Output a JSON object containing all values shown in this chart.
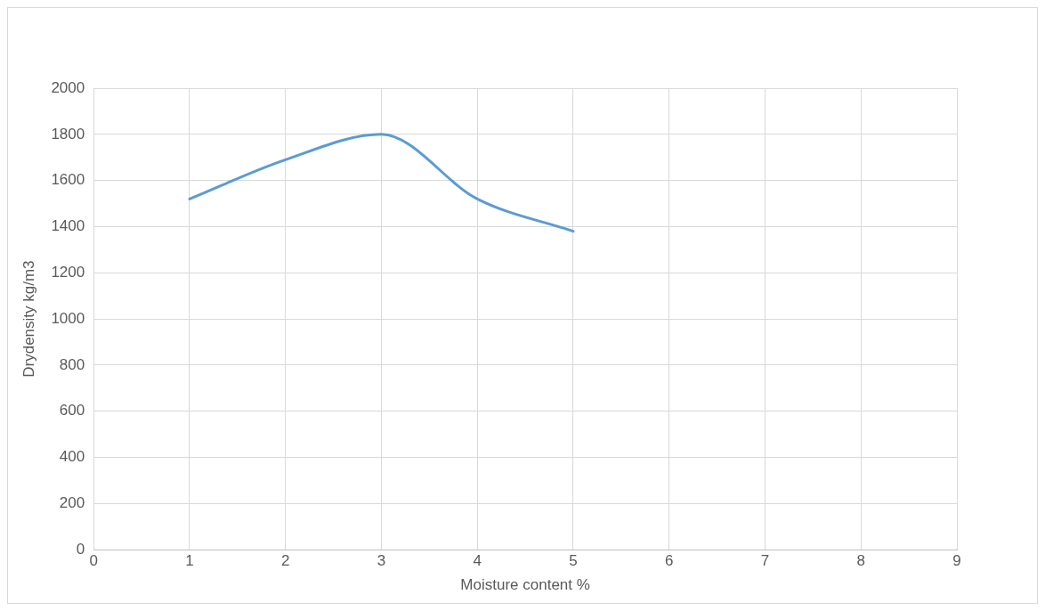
{
  "chart_data": {
    "type": "line",
    "xlabel": "Moisture content %",
    "ylabel": "Drydensity kg/m3",
    "x": [
      1,
      2,
      3,
      4,
      5
    ],
    "series": [
      {
        "color": "#5b9bd5",
        "values": [
          1520,
          1690,
          1800,
          1520,
          1380
        ]
      }
    ],
    "xlim": [
      0,
      9
    ],
    "xticks": [
      0,
      1,
      2,
      3,
      4,
      5,
      6,
      7,
      8,
      9
    ],
    "ylim": [
      0,
      2000
    ],
    "yticks": [
      0,
      200,
      400,
      600,
      800,
      1000,
      1200,
      1400,
      1600,
      1800,
      2000
    ],
    "grid": true,
    "legend": false,
    "marker": "none",
    "line_style": "solid"
  }
}
